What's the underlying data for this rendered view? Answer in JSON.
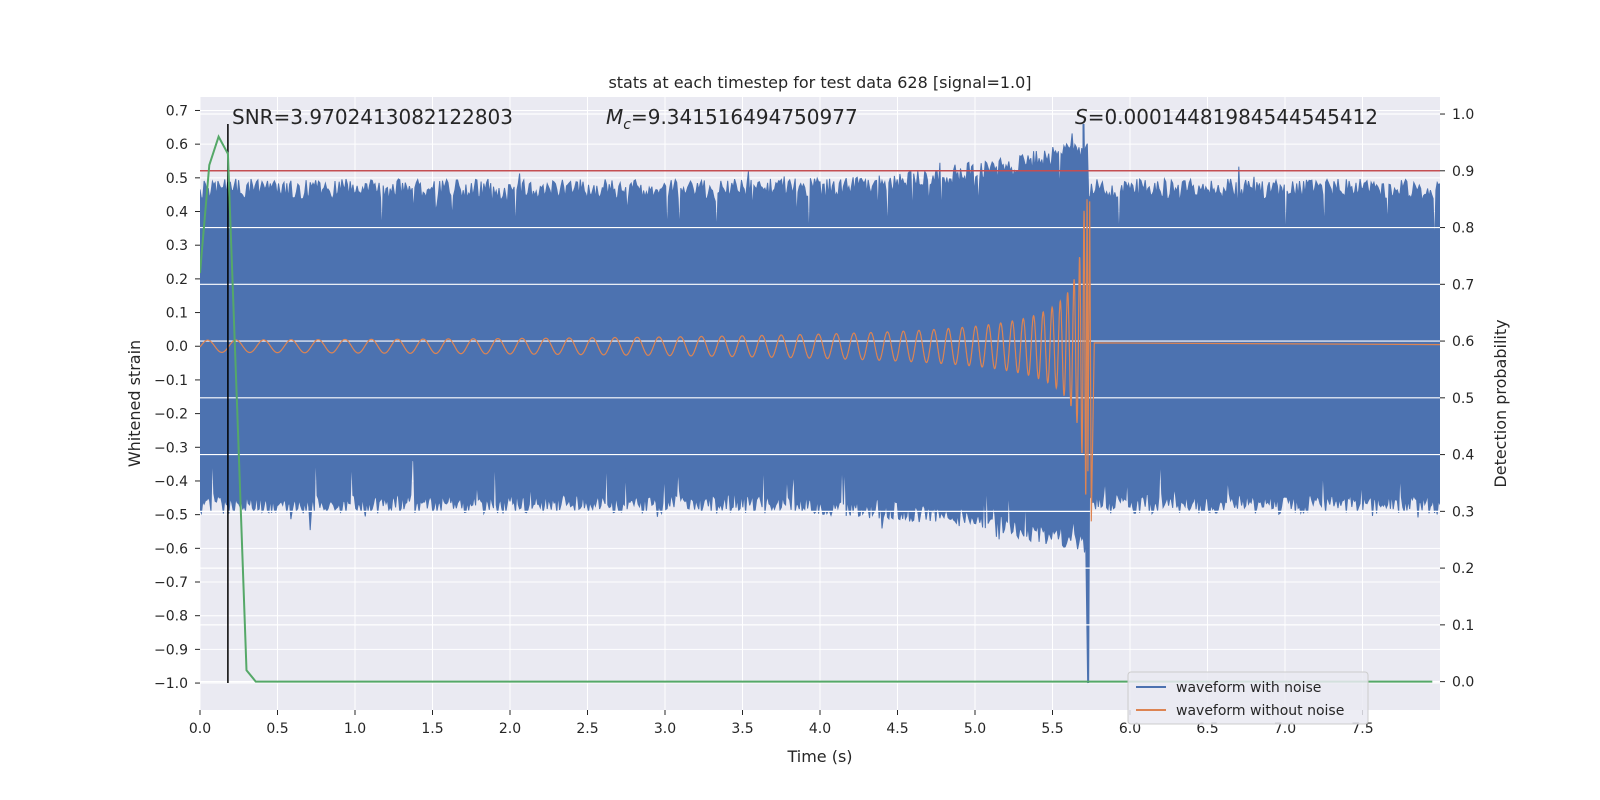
{
  "chart_data": {
    "type": "line",
    "title": "stats at each timestep for test data 628 [signal=1.0]",
    "xlabel": "Time (s)",
    "ylabel": "Whitened strain",
    "ylabel_right": "Detection probability",
    "xlim": [
      0.0,
      8.0
    ],
    "ylim": [
      -1.08,
      0.74
    ],
    "ylim_right": [
      -0.05,
      1.03
    ],
    "x_ticks": [
      0.0,
      0.5,
      1.0,
      1.5,
      2.0,
      2.5,
      3.0,
      3.5,
      4.0,
      4.5,
      5.0,
      5.5,
      6.0,
      6.5,
      7.0,
      7.5
    ],
    "x_tick_labels": [
      "0.0",
      "0.5",
      "1.0",
      "1.5",
      "2.0",
      "2.5",
      "3.0",
      "3.5",
      "4.0",
      "4.5",
      "5.0",
      "5.5",
      "6.0",
      "6.5",
      "7.0",
      "7.5"
    ],
    "y_ticks": [
      0.7,
      0.6,
      0.5,
      0.4,
      0.3,
      0.2,
      0.1,
      0.0,
      -0.1,
      -0.2,
      -0.3,
      -0.4,
      -0.5,
      -0.6,
      -0.7,
      -0.8,
      -0.9,
      -1.0
    ],
    "y_tick_labels": [
      "0.7",
      "0.6",
      "0.5",
      "0.4",
      "0.3",
      "0.2",
      "0.1",
      "0.0",
      "−0.1",
      "−0.2",
      "−0.3",
      "−0.4",
      "−0.5",
      "−0.6",
      "−0.7",
      "−0.8",
      "−0.9",
      "−1.0"
    ],
    "y2_ticks": [
      1.0,
      0.9,
      0.8,
      0.7,
      0.6,
      0.5,
      0.4,
      0.3,
      0.2,
      0.1,
      0.0
    ],
    "y2_tick_labels": [
      "1.0",
      "0.9",
      "0.8",
      "0.7",
      "0.6",
      "0.5",
      "0.4",
      "0.3",
      "0.2",
      "0.1",
      "0.0"
    ],
    "annotations": {
      "snr": "SNR=3.9702413082122803",
      "mc_symbol": "M",
      "mc_sub": "c",
      "mc_value": "=9.341516494750977",
      "s_symbol": "S",
      "s_value": "=0.00014481984544545412"
    },
    "threshold_line": {
      "value": 0.9,
      "axis": "right",
      "color": "#c44e52"
    },
    "vertical_marker": {
      "x": 0.18,
      "color": "#000000"
    },
    "merger_time": 5.73,
    "noise_envelope": 0.47,
    "series": [
      {
        "name": "waveform with noise",
        "color": "#4c72b0"
      },
      {
        "name": "waveform without noise",
        "color": "#dd8452"
      },
      {
        "name": "detection probability",
        "color": "#55a868",
        "axis": "right",
        "x": [
          0.0,
          0.06,
          0.12,
          0.18,
          0.24,
          0.3,
          0.36,
          7.95
        ],
        "values": [
          0.72,
          0.91,
          0.96,
          0.93,
          0.48,
          0.02,
          0.0,
          0.0
        ]
      }
    ],
    "legend": {
      "location": "lower-right",
      "entries": [
        {
          "label": "waveform with noise",
          "color": "#4c72b0"
        },
        {
          "label": "waveform without noise",
          "color": "#dd8452"
        }
      ]
    },
    "colors": {
      "background": "#eaeaf2",
      "grid": "#ffffff"
    }
  }
}
